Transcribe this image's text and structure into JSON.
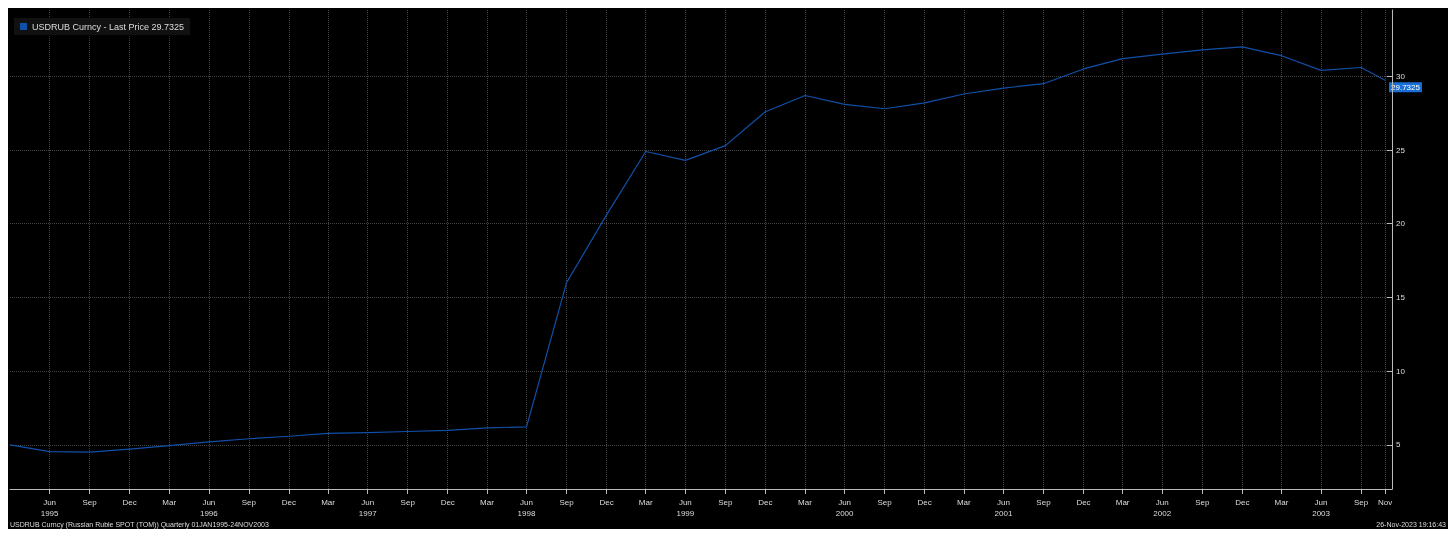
{
  "chart_data": {
    "type": "line",
    "x": [
      "1995-03-31",
      "1995-06-30",
      "1995-09-30",
      "1995-12-31",
      "1996-03-31",
      "1996-06-30",
      "1996-09-30",
      "1996-12-31",
      "1997-03-31",
      "1997-06-30",
      "1997-09-30",
      "1997-12-31",
      "1998-03-31",
      "1998-06-30",
      "1998-09-30",
      "1998-12-31",
      "1999-03-31",
      "1999-06-30",
      "1999-09-30",
      "1999-12-31",
      "2000-03-31",
      "2000-06-30",
      "2000-09-30",
      "2000-12-31",
      "2001-03-31",
      "2001-06-30",
      "2001-09-30",
      "2001-12-31",
      "2002-03-31",
      "2002-06-30",
      "2002-09-30",
      "2002-12-31",
      "2003-03-31",
      "2003-06-30",
      "2003-09-30",
      "2003-11-24"
    ],
    "series": [
      {
        "name": "USDRUB Curncy - Last Price 29.7325",
        "color": "#1050a8",
        "values": [
          5.0,
          4.53,
          4.5,
          4.71,
          4.94,
          5.2,
          5.41,
          5.58,
          5.77,
          5.83,
          5.9,
          5.98,
          6.15,
          6.22,
          16.0,
          20.6,
          24.9,
          24.3,
          25.3,
          27.6,
          28.7,
          28.1,
          27.8,
          28.2,
          28.8,
          29.2,
          29.5,
          30.5,
          31.2,
          31.5,
          31.8,
          32.0,
          31.4,
          30.4,
          30.6,
          29.7325
        ]
      }
    ],
    "xlim": [
      "1995-03-31",
      "2003-12-10"
    ],
    "xticks": [
      {
        "value": "1995-06-30",
        "label": "Jun\n1995"
      },
      {
        "value": "1995-09-30",
        "label": "Sep"
      },
      {
        "value": "1995-12-31",
        "label": "Dec"
      },
      {
        "value": "1996-03-31",
        "label": "Mar"
      },
      {
        "value": "1996-06-30",
        "label": "Jun\n1996"
      },
      {
        "value": "1996-09-30",
        "label": "Sep"
      },
      {
        "value": "1996-12-31",
        "label": "Dec"
      },
      {
        "value": "1997-03-31",
        "label": "Mar"
      },
      {
        "value": "1997-06-30",
        "label": "Jun\n1997"
      },
      {
        "value": "1997-09-30",
        "label": "Sep"
      },
      {
        "value": "1997-12-31",
        "label": "Dec"
      },
      {
        "value": "1998-03-31",
        "label": "Mar"
      },
      {
        "value": "1998-06-30",
        "label": "Jun\n1998"
      },
      {
        "value": "1998-09-30",
        "label": "Sep"
      },
      {
        "value": "1998-12-31",
        "label": "Dec"
      },
      {
        "value": "1999-03-31",
        "label": "Mar"
      },
      {
        "value": "1999-06-30",
        "label": "Jun\n1999"
      },
      {
        "value": "1999-09-30",
        "label": "Sep"
      },
      {
        "value": "1999-12-31",
        "label": "Dec"
      },
      {
        "value": "2000-03-31",
        "label": "Mar"
      },
      {
        "value": "2000-06-30",
        "label": "Jun\n2000"
      },
      {
        "value": "2000-09-30",
        "label": "Sep"
      },
      {
        "value": "2000-12-31",
        "label": "Dec"
      },
      {
        "value": "2001-03-31",
        "label": "Mar"
      },
      {
        "value": "2001-06-30",
        "label": "Jun\n2001"
      },
      {
        "value": "2001-09-30",
        "label": "Sep"
      },
      {
        "value": "2001-12-31",
        "label": "Dec"
      },
      {
        "value": "2002-03-31",
        "label": "Mar"
      },
      {
        "value": "2002-06-30",
        "label": "Jun\n2002"
      },
      {
        "value": "2002-09-30",
        "label": "Sep"
      },
      {
        "value": "2002-12-31",
        "label": "Dec"
      },
      {
        "value": "2003-03-31",
        "label": "Mar"
      },
      {
        "value": "2003-06-30",
        "label": "Jun\n2003"
      },
      {
        "value": "2003-09-30",
        "label": "Sep"
      },
      {
        "value": "2003-11-24",
        "label": "Nov"
      }
    ],
    "ylim": [
      2,
      34.5
    ],
    "yticks": [
      5,
      10,
      15,
      20,
      25,
      30
    ],
    "grid": true,
    "legend": "top left",
    "marker": "none",
    "line_style": "solid",
    "annotations": [
      {
        "text": "29.7325",
        "x": "2003-11-24",
        "y": 29.7325
      },
      "USDRUB Curncy (Russian Ruble SPOT (TOM)) Quarterly 01JAN1995-24NOV2003",
      "26-Nov-2023 19:16:43"
    ]
  }
}
